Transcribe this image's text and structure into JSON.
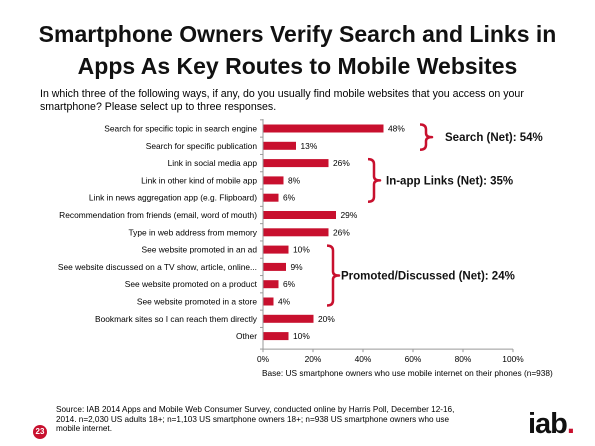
{
  "title_line1": "Smartphone Owners Verify Search and Links in",
  "title_line2": "Apps As Key Routes to Mobile Websites",
  "question": "In which three of the following ways, if any, do you usually find mobile websites that you access on your smartphone? Please select up to three responses.",
  "base_note": "Base: US smartphone owners who use mobile internet on their phones (n=938)",
  "source": "Source:  IAB 2014 Apps and Mobile Web Consumer Survey, conducted online by Harris Poll, December 12-16, 2014.  n=2,030 US adults 18+; n=1,103 US smartphone owners 18+; n=938 US smartphone owners who use mobile internet.",
  "page_number": "23",
  "logo_text": "iab",
  "logo_dot": ".",
  "colors": {
    "bar": "#c8102e",
    "bracket": "#c8102e",
    "axis": "#999999"
  },
  "chart_data": {
    "type": "bar",
    "orientation": "horizontal",
    "categories": [
      "Search for specific topic in search engine",
      "Search for specific publication",
      "Link in social media app",
      "Link in other kind of mobile app",
      "Link in news aggregation app (e.g. Flipboard)",
      "Recommendation from friends (email, word of mouth)",
      "Type in web address from memory",
      "See website promoted in an ad",
      "See website discussed on a TV show, article, online...",
      "See website promoted on a product",
      "See website promoted in a store",
      "Bookmark sites so I can reach them directly",
      "Other"
    ],
    "values": [
      48,
      13,
      26,
      8,
      6,
      29,
      26,
      10,
      9,
      6,
      4,
      20,
      10
    ],
    "value_labels": [
      "48%",
      "13%",
      "26%",
      "8%",
      "6%",
      "29%",
      "26%",
      "10%",
      "9%",
      "6%",
      "4%",
      "20%",
      "10%"
    ],
    "xlim": [
      0,
      100
    ],
    "xticks": [
      0,
      20,
      40,
      60,
      80,
      100
    ],
    "xtick_labels": [
      "0%",
      "20%",
      "40%",
      "60%",
      "80%",
      "100%"
    ],
    "grid": false,
    "annotations": [
      {
        "label": "Search (Net):  54%",
        "from_index": 0,
        "to_index": 1
      },
      {
        "label": "In-app Links (Net):  35%",
        "from_index": 2,
        "to_index": 4
      },
      {
        "label": "Promoted/Discussed (Net):  24%",
        "from_index": 7,
        "to_index": 10
      }
    ]
  }
}
